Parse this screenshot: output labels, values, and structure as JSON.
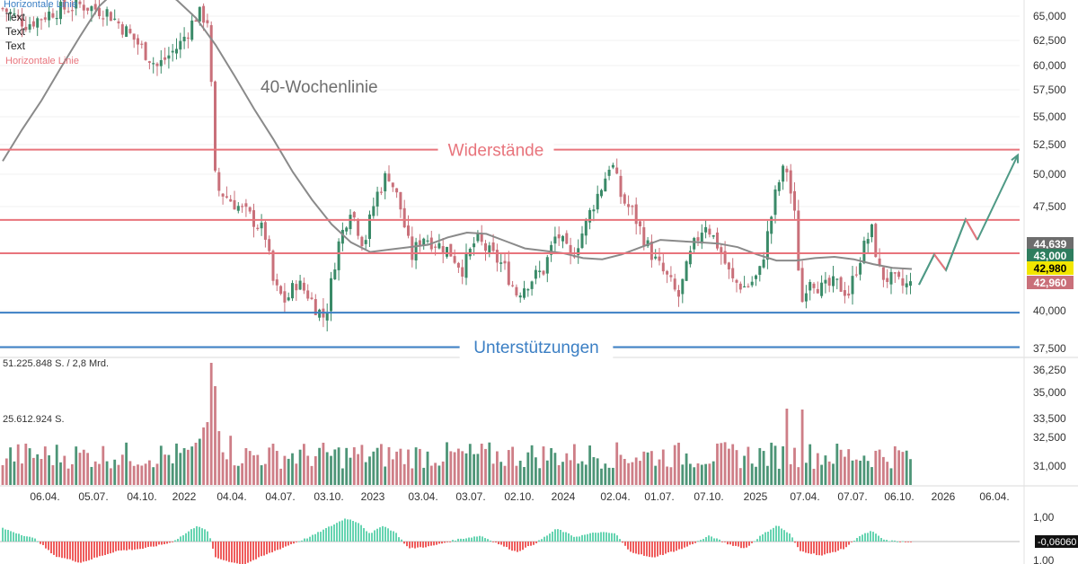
{
  "drawing_tools": {
    "top_label": "Horizontale Linie",
    "text_items": [
      "Text",
      "Text",
      "Text"
    ],
    "red_label": "Horizontale Linie"
  },
  "annotations": {
    "ma_label": "40-Wochenlinie",
    "resistance_label": "Widerstände",
    "support_label": "Unterstützungen"
  },
  "colors": {
    "up": "#3a8a68",
    "down": "#c9707a",
    "resistance": "#e8747c",
    "support": "#3b7fc4",
    "ma": "#8a8a8a",
    "forecast": "#e8747c",
    "forecast_up": "#4f9a86",
    "osc_pos": "#66d4b1",
    "osc_neg": "#ef5c5c"
  },
  "volume": {
    "max_label": "51.225.848 S. / 2,8 Mrd.",
    "mid_label": "25.612.924 S."
  },
  "price_badges": [
    {
      "text": "44,639",
      "bg": "#6d6d6d",
      "fg": "#ffffff"
    },
    {
      "text": "43,000",
      "bg": "#2e7d5e",
      "fg": "#ffffff"
    },
    {
      "text": "42,980",
      "bg": "#f2e600",
      "fg": "#000000"
    },
    {
      "text": "42,960",
      "bg": "#c9707a",
      "fg": "#ffffff"
    }
  ],
  "oscillator": {
    "current_value": "-0,06060",
    "ticks": [
      "1,00",
      "1,00"
    ]
  },
  "chart_data": {
    "type": "candlestick",
    "y_ticks": [
      "65,000",
      "62,500",
      "60,000",
      "57,500",
      "55,000",
      "52,500",
      "50,000",
      "47,500",
      "40,000",
      "37,500"
    ],
    "y_range": [
      37000,
      66500
    ],
    "volume_ticks": [
      "36,250",
      "35,000",
      "33,500",
      "32,500",
      "31,000"
    ],
    "x_ticks": [
      "06.04.",
      "05.07.",
      "04.10.",
      "2022",
      "04.04.",
      "04.07.",
      "03.10.",
      "2023",
      "03.04.",
      "03.07.",
      "02.10.",
      "2024",
      "02.04.",
      "01.07.",
      "07.10.",
      "2025",
      "07.04.",
      "07.07.",
      "06.10.",
      "2026",
      "06.04."
    ],
    "resistance_levels": [
      54150,
      48350,
      45600
    ],
    "support_levels": [
      40700,
      37850
    ],
    "forecast_path": [
      [
        43000,
        0
      ],
      [
        45500,
        1
      ],
      [
        44200,
        2
      ],
      [
        48400,
        3
      ],
      [
        46700,
        4
      ],
      [
        53700,
        5
      ]
    ],
    "ma_points": [
      53200,
      55800,
      58200,
      60900,
      63500,
      66000,
      67500,
      67800,
      67600,
      66500,
      65000,
      62800,
      60200,
      57500,
      55000,
      52300,
      50000,
      48000,
      46500,
      45700,
      45900,
      46100,
      46300,
      46900,
      47300,
      47200,
      46600,
      46000,
      45800,
      45600,
      45200,
      45100,
      45500,
      46100,
      46700,
      46600,
      46500,
      46400,
      46100,
      45500,
      45000,
      45000,
      45200,
      45300,
      45100,
      44700,
      44400,
      44300
    ]
  }
}
